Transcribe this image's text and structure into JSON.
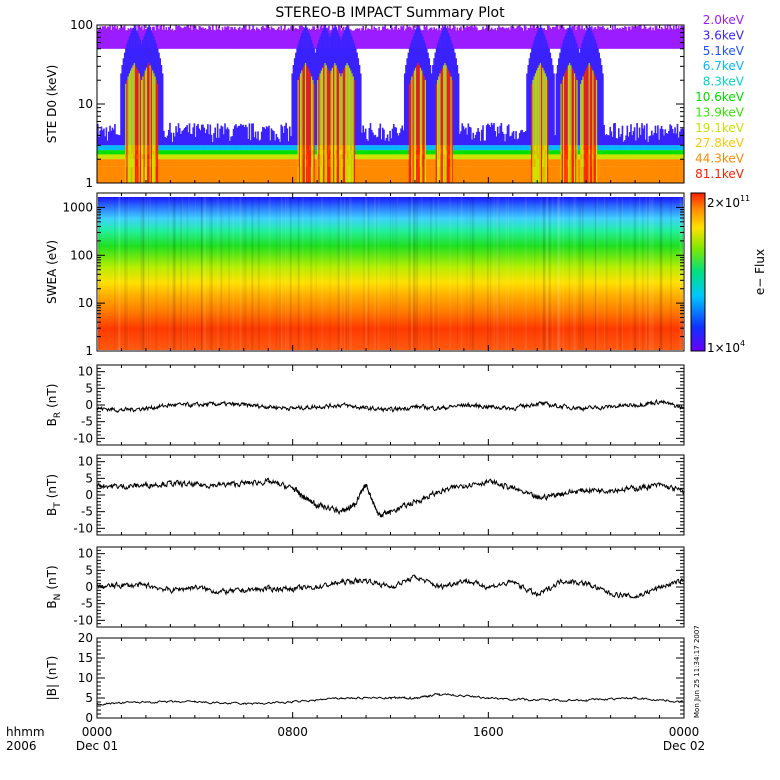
{
  "title": "STEREO-B IMPACT Summary Plot",
  "stamp": "Mon Jun 25 11:34:17 2007",
  "time_axis": {
    "row1_labels": [
      "hhmm",
      "0000",
      "0800",
      "1600",
      "0000"
    ],
    "row2_labels": [
      "2006",
      "Dec 01",
      "Dec 02"
    ]
  },
  "colors": {
    "trace": "#000000",
    "ste_channels": [
      "#9a1cff",
      "#3a22ff",
      "#1e52ff",
      "#06b8ff",
      "#00d8c8",
      "#00e000",
      "#32e600",
      "#c8e400",
      "#ffc800",
      "#ff8a00",
      "#ff2000"
    ]
  },
  "chart_data": [
    {
      "type": "line",
      "id": "ste",
      "title": "STEREO-B IMPACT Summary Plot",
      "ylabel": "STE D0 (keV)",
      "yscale": "log",
      "ylim": [
        1,
        100
      ],
      "ytick_labels": [
        "1",
        "10",
        "100"
      ],
      "xlim_hours": [
        0,
        24
      ],
      "legend": [
        "2.0keV",
        "3.6keV",
        "5.1keV",
        "6.7keV",
        "8.3keV",
        "10.6keV",
        "13.9keV",
        "19.1keV",
        "27.8keV",
        "44.3keV",
        "81.1keV"
      ],
      "legend_position": "right",
      "series_levels": [
        {
          "name": "2.0keV",
          "typical": 80
        },
        {
          "name": "3.6keV",
          "typical": 4
        },
        {
          "name": "5.1keV",
          "typical": 3.6
        },
        {
          "name": "6.7keV",
          "typical": 3.2
        },
        {
          "name": "8.3keV",
          "typical": 2.9
        },
        {
          "name": "10.6keV",
          "typical": 2.6
        },
        {
          "name": "13.9keV",
          "typical": 2.3
        },
        {
          "name": "19.1keV",
          "typical": 2.1
        },
        {
          "name": "27.8keV",
          "typical": 1.9
        },
        {
          "name": "44.3keV",
          "typical": 1.6
        },
        {
          "name": "81.1keV",
          "typical": 1.3
        }
      ],
      "event_hours": [
        1.5,
        2.1,
        8.5,
        9.3,
        9.7,
        10.2,
        13.1,
        14.2,
        18.1,
        19.3,
        20.1
      ]
    },
    {
      "type": "heatmap",
      "id": "swea",
      "ylabel": "SWEA (eV)",
      "yscale": "log",
      "ylim": [
        1,
        2000
      ],
      "ytick_labels": [
        "1",
        "10",
        "100",
        "1000"
      ],
      "xlim_hours": [
        0,
        24
      ],
      "colorbar_label": "e− Flux",
      "colorbar_max": "2×10",
      "colorbar_max_exp": "11",
      "colorbar_min": "1×10",
      "colorbar_min_exp": "4",
      "colorbar_range": [
        10000,
        200000000000
      ]
    },
    {
      "type": "line",
      "id": "br",
      "ylabel": "B",
      "ylabel_sub": "R",
      "ylabel_unit": "(nT)",
      "ylim": [
        -12,
        12
      ],
      "ytick_labels": [
        "10",
        "5",
        "0",
        "-5",
        "-10"
      ],
      "xlim_hours": [
        0,
        24
      ],
      "x": [
        0,
        1,
        2,
        3,
        4,
        5,
        6,
        7,
        8,
        9,
        10,
        11,
        12,
        13,
        14,
        15,
        16,
        17,
        18,
        19,
        20,
        21,
        22,
        23,
        24
      ],
      "y": [
        -1,
        -1.5,
        -1,
        0,
        0,
        0.3,
        0,
        -0.5,
        -1,
        -0.5,
        0,
        -1,
        -1.5,
        -0.5,
        -1,
        0,
        -0.5,
        -1,
        0.5,
        -0.5,
        -1,
        -0.5,
        0,
        1,
        -1
      ]
    },
    {
      "type": "line",
      "id": "bt",
      "ylabel": "B",
      "ylabel_sub": "T",
      "ylabel_unit": "(nT)",
      "ylim": [
        -12,
        12
      ],
      "ytick_labels": [
        "10",
        "5",
        "0",
        "-5",
        "-10"
      ],
      "xlim_hours": [
        0,
        24
      ],
      "x": [
        0,
        1,
        2,
        3,
        4,
        5,
        6,
        7,
        8,
        8.5,
        9,
        10,
        10.5,
        11,
        11.5,
        12,
        13,
        14,
        15,
        16,
        17,
        18,
        19,
        20,
        21,
        22,
        23,
        24
      ],
      "y": [
        3,
        2.5,
        3,
        3.5,
        3,
        3,
        3.5,
        4,
        2,
        -1,
        -3,
        -5,
        -3,
        3,
        -6,
        -5,
        -2,
        1,
        3,
        4,
        2,
        -1,
        0.5,
        1.5,
        1.5,
        2,
        3,
        1
      ]
    },
    {
      "type": "line",
      "id": "bn",
      "ylabel": "B",
      "ylabel_sub": "N",
      "ylabel_unit": "(nT)",
      "ylim": [
        -12,
        12
      ],
      "ytick_labels": [
        "10",
        "5",
        "0",
        "-5",
        "-10"
      ],
      "xlim_hours": [
        0,
        24
      ],
      "x": [
        0,
        1,
        2,
        3,
        4,
        5,
        6,
        7,
        8,
        9,
        10,
        11,
        12,
        13,
        14,
        15,
        16,
        17,
        18,
        19,
        20,
        21,
        22,
        23,
        24
      ],
      "y": [
        0,
        0.5,
        0.5,
        -1,
        0,
        -1.5,
        -1,
        -0.5,
        -0.5,
        0,
        1.5,
        2,
        0,
        3,
        0,
        2,
        0,
        1.5,
        -2.5,
        2,
        1,
        -2,
        -3,
        0,
        2
      ]
    },
    {
      "type": "line",
      "id": "bmag",
      "ylabel": "|B|",
      "ylabel_unit": "(nT)",
      "ylim": [
        0,
        20
      ],
      "ytick_labels": [
        "20",
        "15",
        "10",
        "5",
        "0"
      ],
      "xlim_hours": [
        0,
        24
      ],
      "x": [
        0,
        2,
        4,
        6,
        8,
        10,
        12,
        13,
        14,
        16,
        18,
        20,
        22,
        24
      ],
      "y": [
        3.5,
        4,
        4,
        3.5,
        4,
        5,
        5,
        5,
        6,
        5,
        4.5,
        4.5,
        5,
        4
      ]
    }
  ]
}
